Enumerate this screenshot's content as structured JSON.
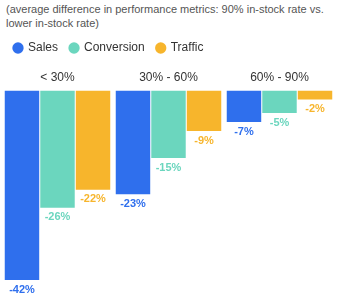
{
  "chart_data": {
    "type": "bar",
    "subtitle": "(average difference in performance metrics: 90% in-stock rate vs. lower in-stock rate)",
    "categories": [
      "< 30%",
      "30% - 60%",
      "60% - 90%"
    ],
    "series": [
      {
        "name": "Sales",
        "color": "#2f6fed",
        "values": [
          -42,
          -23,
          -7
        ],
        "value_labels": [
          "-42%",
          "-23%",
          "-7%"
        ]
      },
      {
        "name": "Conversion",
        "color": "#6bd6be",
        "values": [
          -26,
          -15,
          -5
        ],
        "value_labels": [
          "-26%",
          "-15%",
          "-5%"
        ]
      },
      {
        "name": "Traffic",
        "color": "#f7b52c",
        "values": [
          -22,
          -9,
          -2
        ],
        "value_labels": [
          "-22%",
          "-9%",
          "-2%"
        ]
      }
    ],
    "ylim": [
      -42,
      0
    ],
    "legend": "top-left",
    "data_labels": true,
    "tick_labels": "x",
    "grid": false
  }
}
